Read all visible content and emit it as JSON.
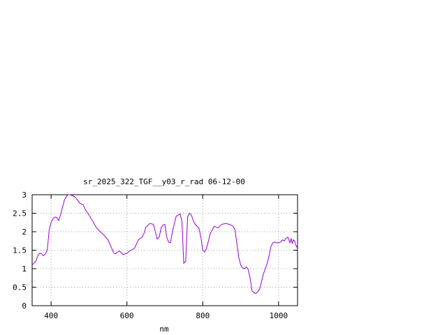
{
  "chart_data": {
    "type": "line",
    "title": "sr_2025_322_TGF__y03_r_rad 06-12-00",
    "xlabel": "nm",
    "ylabel": "",
    "xlim": [
      350,
      1050
    ],
    "ylim": [
      0,
      3
    ],
    "x_ticks": [
      400,
      600,
      800,
      1000
    ],
    "y_ticks": [
      0,
      0.5,
      1,
      1.5,
      2,
      2.5,
      3
    ],
    "x_tick_labels": [
      "400",
      "600",
      "800",
      "1000"
    ],
    "y_tick_labels": [
      "0",
      "0.5",
      "1",
      "1.5",
      "2",
      "2.5",
      "3"
    ],
    "grid": true,
    "line_color": "#9400d3",
    "series": [
      {
        "x": [
          350,
          360,
          365,
          370,
          375,
          380,
          385,
          390,
          395,
          400,
          405,
          410,
          415,
          420,
          425,
          430,
          435,
          440,
          445,
          450,
          455,
          460,
          465,
          470,
          475,
          480,
          485,
          490,
          495,
          500,
          510,
          520,
          530,
          540,
          550,
          560,
          565,
          570,
          575,
          580,
          590,
          600,
          610,
          620,
          630,
          640,
          645,
          650,
          660,
          670,
          675,
          680,
          685,
          690,
          695,
          700,
          705,
          710,
          715,
          720,
          730,
          740,
          745,
          750,
          755,
          760,
          765,
          770,
          775,
          780,
          785,
          790,
          795,
          800,
          805,
          810,
          815,
          820,
          830,
          840,
          850,
          860,
          870,
          880,
          885,
          890,
          895,
          900,
          905,
          910,
          915,
          920,
          925,
          930,
          935,
          940,
          945,
          950,
          955,
          960,
          965,
          970,
          975,
          980,
          985,
          990,
          995,
          1000,
          1005,
          1010,
          1015,
          1020,
          1025,
          1030,
          1033,
          1036,
          1039,
          1042,
          1045,
          1050
        ],
        "y": [
          1.1,
          1.2,
          1.35,
          1.42,
          1.4,
          1.35,
          1.4,
          1.5,
          2.05,
          2.25,
          2.35,
          2.4,
          2.38,
          2.3,
          2.45,
          2.65,
          2.85,
          2.95,
          3.0,
          3.0,
          2.98,
          2.96,
          2.92,
          2.85,
          2.78,
          2.75,
          2.72,
          2.6,
          2.52,
          2.45,
          2.28,
          2.1,
          2.0,
          1.9,
          1.78,
          1.55,
          1.43,
          1.4,
          1.45,
          1.48,
          1.38,
          1.42,
          1.5,
          1.55,
          1.78,
          1.85,
          1.95,
          2.12,
          2.22,
          2.2,
          2.0,
          1.8,
          1.85,
          2.1,
          2.18,
          2.2,
          1.85,
          1.72,
          1.7,
          2.0,
          2.42,
          2.48,
          2.3,
          1.15,
          1.2,
          2.4,
          2.5,
          2.45,
          2.3,
          2.2,
          2.15,
          2.1,
          1.85,
          1.5,
          1.45,
          1.55,
          1.75,
          1.95,
          2.15,
          2.1,
          2.2,
          2.22,
          2.2,
          2.15,
          2.05,
          1.7,
          1.3,
          1.1,
          1.02,
          1.0,
          1.05,
          0.98,
          0.75,
          0.4,
          0.35,
          0.33,
          0.38,
          0.45,
          0.65,
          0.85,
          1.0,
          1.15,
          1.35,
          1.6,
          1.7,
          1.72,
          1.7,
          1.7,
          1.72,
          1.78,
          1.75,
          1.82,
          1.85,
          1.7,
          1.82,
          1.68,
          1.78,
          1.75,
          1.65,
          1.55
        ]
      }
    ]
  }
}
